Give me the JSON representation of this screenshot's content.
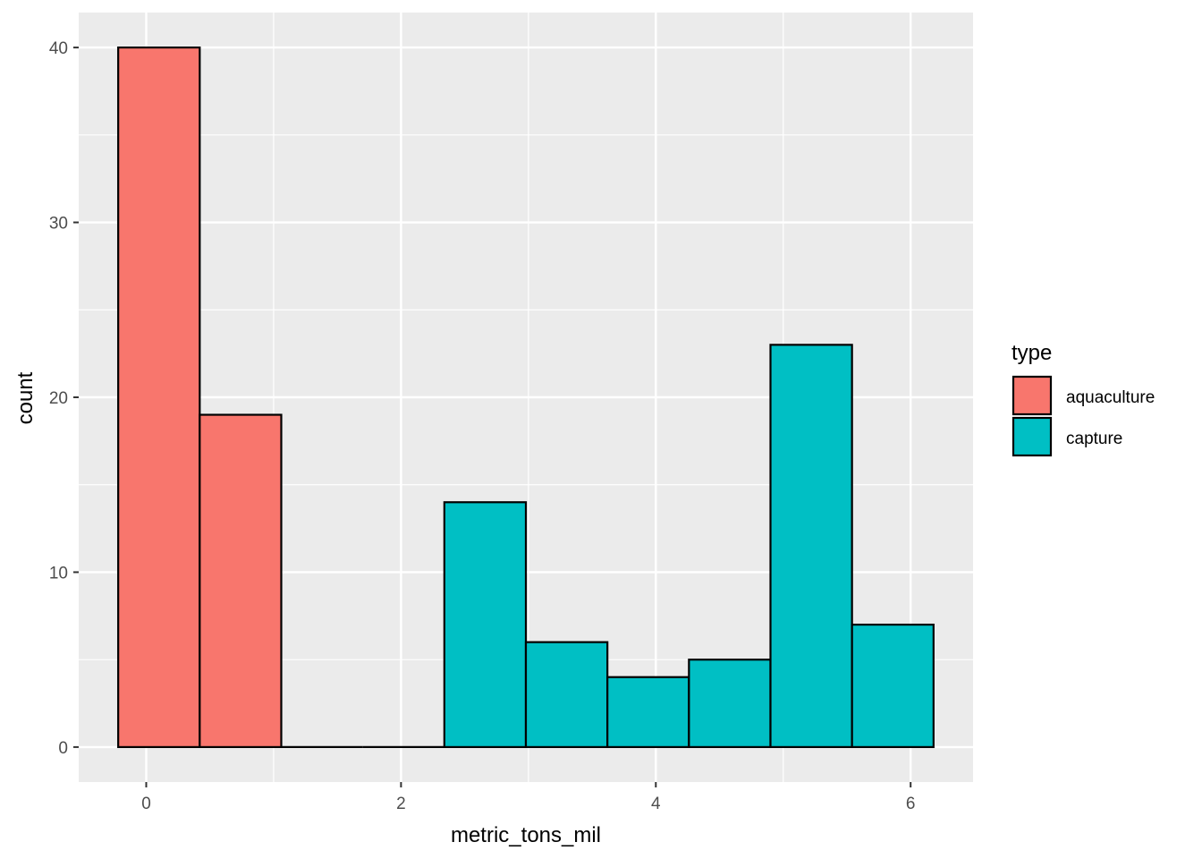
{
  "chart_data": {
    "type": "histogram",
    "xlabel": "metric_tons_mil",
    "ylabel": "count",
    "xlim": [
      -0.53,
      6.49
    ],
    "ylim": [
      -2,
      42
    ],
    "x_ticks": [
      0,
      2,
      4,
      6
    ],
    "x_minor_ticks": [
      1,
      3,
      5
    ],
    "y_ticks": [
      0,
      10,
      20,
      30,
      40
    ],
    "y_minor_ticks": [
      5,
      15,
      25,
      35
    ],
    "grid": true,
    "legend": {
      "title": "type",
      "position": "right"
    },
    "series": [
      {
        "name": "aquaculture",
        "color": "#F8766D"
      },
      {
        "name": "capture",
        "color": "#00BFC4"
      }
    ],
    "bins": [
      {
        "x0": -0.22,
        "x1": 0.42,
        "count": 40,
        "type": "aquaculture"
      },
      {
        "x0": 0.42,
        "x1": 1.06,
        "count": 19,
        "type": "aquaculture"
      },
      {
        "x0": 1.06,
        "x1": 1.7,
        "count": 0,
        "type": ""
      },
      {
        "x0": 1.7,
        "x1": 2.34,
        "count": 0,
        "type": ""
      },
      {
        "x0": 2.34,
        "x1": 2.98,
        "count": 14,
        "type": "capture"
      },
      {
        "x0": 2.98,
        "x1": 3.62,
        "count": 6,
        "type": "capture"
      },
      {
        "x0": 3.62,
        "x1": 4.26,
        "count": 4,
        "type": "capture"
      },
      {
        "x0": 4.26,
        "x1": 4.9,
        "count": 5,
        "type": "capture"
      },
      {
        "x0": 4.9,
        "x1": 5.54,
        "count": 23,
        "type": "capture"
      },
      {
        "x0": 5.54,
        "x1": 6.18,
        "count": 7,
        "type": "capture"
      }
    ]
  }
}
